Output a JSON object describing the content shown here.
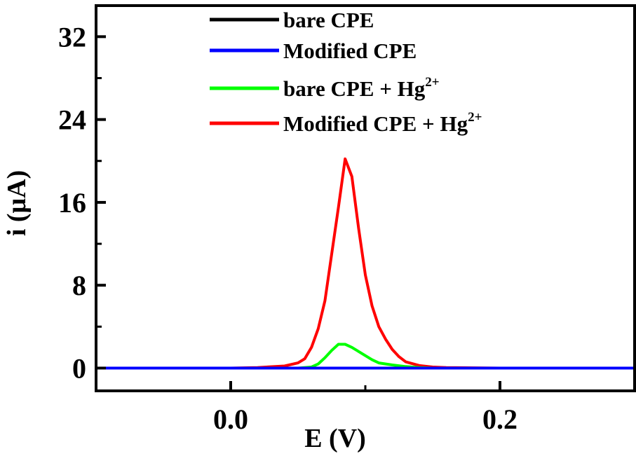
{
  "chart_data": {
    "type": "line",
    "title": "",
    "xlabel": "E (V)",
    "ylabel": "i (μA)",
    "xlim": [
      -0.1,
      0.3
    ],
    "ylim": [
      -2.2,
      35
    ],
    "x_ticks": [
      {
        "value": 0.0,
        "label": "0.0"
      },
      {
        "value": 0.2,
        "label": "0.2"
      }
    ],
    "x_minor_ticks": [
      -0.1,
      0.1,
      0.3
    ],
    "y_ticks": [
      {
        "value": 0,
        "label": "0"
      },
      {
        "value": 8,
        "label": "8"
      },
      {
        "value": 16,
        "label": "16"
      },
      {
        "value": 24,
        "label": "24"
      },
      {
        "value": 32,
        "label": "32"
      }
    ],
    "y_minor_ticks": [
      4,
      12,
      20,
      28
    ],
    "grid": false,
    "legend_position": "top-center",
    "series": [
      {
        "name": "bare CPE",
        "superscript": "",
        "color": "#000000",
        "x": [
          -0.1,
          0.3
        ],
        "y": [
          0.0,
          0.0
        ]
      },
      {
        "name": "Modified CPE",
        "superscript": "",
        "color": "#0000ff",
        "x": [
          -0.1,
          0.3
        ],
        "y": [
          0.0,
          0.0
        ]
      },
      {
        "name": "bare CPE + Hg",
        "superscript": "2+",
        "color": "#00ff00",
        "x": [
          -0.1,
          0.05,
          0.06,
          0.065,
          0.07,
          0.075,
          0.08,
          0.085,
          0.09,
          0.095,
          0.1,
          0.105,
          0.11,
          0.12,
          0.13,
          0.14,
          0.15,
          0.3
        ],
        "y": [
          0.0,
          0.0,
          0.1,
          0.4,
          1.0,
          1.7,
          2.3,
          2.3,
          2.0,
          1.6,
          1.2,
          0.8,
          0.5,
          0.3,
          0.15,
          0.05,
          0.0,
          0.0
        ]
      },
      {
        "name": "Modified CPE + Hg",
        "superscript": "2+",
        "color": "#ff0000",
        "x": [
          -0.1,
          0.0,
          0.02,
          0.04,
          0.05,
          0.055,
          0.06,
          0.065,
          0.07,
          0.075,
          0.08,
          0.085,
          0.09,
          0.095,
          0.1,
          0.105,
          0.11,
          0.115,
          0.12,
          0.125,
          0.13,
          0.14,
          0.15,
          0.16,
          0.2,
          0.3
        ],
        "y": [
          0.0,
          0.0,
          0.05,
          0.2,
          0.5,
          0.9,
          2.0,
          3.8,
          6.5,
          11.0,
          15.5,
          20.2,
          18.5,
          13.5,
          9.0,
          6.0,
          4.0,
          2.8,
          1.8,
          1.1,
          0.6,
          0.25,
          0.1,
          0.05,
          0.0,
          0.0
        ]
      }
    ]
  }
}
